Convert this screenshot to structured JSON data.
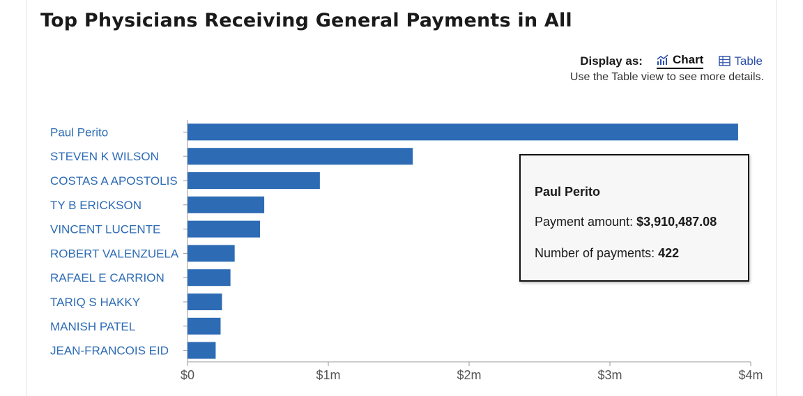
{
  "title": "Top Physicians Receiving General Payments in All",
  "controls": {
    "display_label": "Display as:",
    "chart_label": "Chart",
    "table_label": "Table",
    "hint": "Use the Table view to see more details."
  },
  "tooltip": {
    "name": "Paul Perito",
    "amount_label": "Payment amount:",
    "amount_value": "$3,910,487.08",
    "count_label": "Number of payments:",
    "count_value": "422"
  },
  "colors": {
    "bar": "#2d6bb5",
    "label": "#2d6bb5",
    "axis": "#999999"
  },
  "chart_data": {
    "type": "bar",
    "orientation": "horizontal",
    "title": "Top Physicians Receiving General Payments in All",
    "categories": [
      "Paul Perito",
      "STEVEN K WILSON",
      "COSTAS A APOSTOLIS",
      "TY B ERICKSON",
      "VINCENT LUCENTE",
      "ROBERT VALENZUELA",
      "RAFAEL E CARRION",
      "TARIQ S HAKKY",
      "MANISH PATEL",
      "JEAN-FRANCOIS EID"
    ],
    "values": [
      3910487.08,
      1600000,
      940000,
      545000,
      515000,
      335000,
      305000,
      245000,
      235000,
      200000
    ],
    "xlim": [
      0,
      4000000
    ],
    "xticks": [
      0,
      1000000,
      2000000,
      3000000,
      4000000
    ],
    "xtick_labels": [
      "$0",
      "$1m",
      "$2m",
      "$3m",
      "$4m"
    ],
    "xlabel": "",
    "ylabel": "",
    "grid": false
  }
}
